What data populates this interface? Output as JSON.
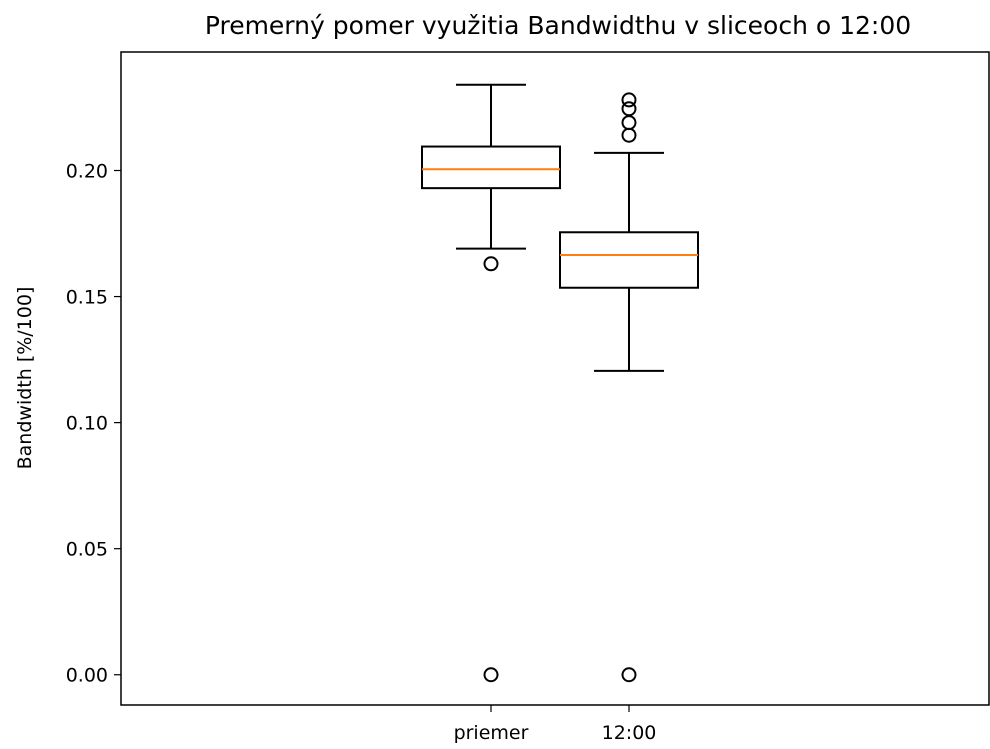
{
  "chart_data": {
    "type": "box",
    "title": "Premerný pomer využitia Bandwidthu v sliceoch o 12:00",
    "xlabel": "",
    "ylabel": "Bandwidth [%/100]",
    "ylim": [
      -0.012,
      0.247
    ],
    "yticks": [
      0.0,
      0.05,
      0.1,
      0.15,
      0.2
    ],
    "ytick_labels": [
      "0.00",
      "0.05",
      "0.10",
      "0.15",
      "0.20"
    ],
    "grid": false,
    "median_color": "#ff7f0e",
    "box_color": "#000000",
    "categories": [
      "priemer",
      "12:00"
    ],
    "boxes": [
      {
        "label": "priemer",
        "whisker_low": 0.169,
        "q1": 0.193,
        "median": 0.2005,
        "q3": 0.2095,
        "whisker_high": 0.234,
        "outliers": [
          0.163,
          0.0
        ]
      },
      {
        "label": "12:00",
        "whisker_low": 0.1205,
        "q1": 0.1535,
        "median": 0.1665,
        "q3": 0.1755,
        "whisker_high": 0.207,
        "outliers": [
          0.228,
          0.2245,
          0.219,
          0.214,
          0.0
        ]
      }
    ]
  }
}
